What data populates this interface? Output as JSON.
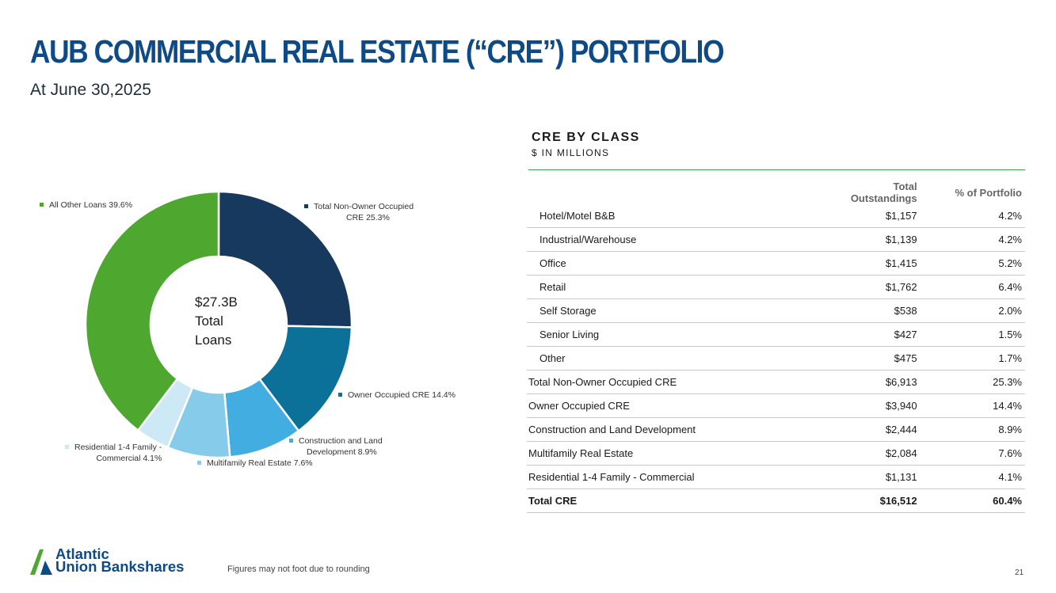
{
  "header": {
    "title": "AUB COMMERCIAL REAL ESTATE (“CRE”) PORTFOLIO",
    "subtitle": "At June 30,2025"
  },
  "table": {
    "title": "CRE BY CLASS",
    "subtitle": "$ IN MILLIONS",
    "columns": [
      "",
      "Total Outstandings",
      "% of Portfolio"
    ],
    "rows": [
      {
        "label": "Hotel/Motel B&B",
        "value": "$1,157",
        "pct": "4.2%"
      },
      {
        "label": "Industrial/Warehouse",
        "value": "$1,139",
        "pct": "4.2%"
      },
      {
        "label": "Office",
        "value": "$1,415",
        "pct": "5.2%"
      },
      {
        "label": "Retail",
        "value": "$1,762",
        "pct": "6.4%"
      },
      {
        "label": "Self Storage",
        "value": "$538",
        "pct": "2.0%"
      },
      {
        "label": "Senior Living",
        "value": "$427",
        "pct": "1.5%"
      },
      {
        "label": "Other",
        "value": "$475",
        "pct": "1.7%"
      },
      {
        "label": "Total Non-Owner Occupied CRE",
        "value": "$6,913",
        "pct": "25.3%"
      },
      {
        "label": "Owner Occupied CRE",
        "value": "$3,940",
        "pct": "14.4%"
      },
      {
        "label": "Construction and Land Development",
        "value": "$2,444",
        "pct": "8.9%"
      },
      {
        "label": "Multifamily Real Estate",
        "value": "$2,084",
        "pct": "7.6%"
      },
      {
        "label": "Residential 1-4 Family - Commercial",
        "value": "$1,131",
        "pct": "4.1%"
      },
      {
        "label": "Total CRE",
        "value": "$16,512",
        "pct": "60.4%"
      }
    ]
  },
  "chart_data": {
    "type": "pie",
    "donut": true,
    "center_label": [
      "$27.3B",
      "Total",
      "Loans"
    ],
    "slices": [
      {
        "label": "Total Non-Owner Occupied CRE",
        "label_lines": [
          "Total Non-Owner Occupied",
          "CRE 25.3%"
        ],
        "value": 25.3,
        "color": "#17395e"
      },
      {
        "label": "Owner Occupied CRE",
        "label_lines": [
          "Owner Occupied CRE 14.4%"
        ],
        "value": 14.4,
        "color": "#0b7199"
      },
      {
        "label": "Construction and Land Development",
        "label_lines": [
          "Construction and Land",
          "Development 8.9%"
        ],
        "value": 8.9,
        "color": "#41ade0"
      },
      {
        "label": "Multifamily Real Estate",
        "label_lines": [
          "Multifamily Real Estate 7.6%"
        ],
        "value": 7.6,
        "color": "#86cbea"
      },
      {
        "label": "Residential 1-4 Family - Commercial",
        "label_lines": [
          "Residential 1-4 Family -",
          "Commercial 4.1%"
        ],
        "value": 4.1,
        "color": "#cde9f6"
      },
      {
        "label": "All Other Loans",
        "label_lines": [
          "All Other Loans 39.6%"
        ],
        "value": 39.6,
        "color": "#4ea72e"
      }
    ]
  },
  "footer": {
    "note": "Figures may not foot due to rounding",
    "page": "21",
    "logo_line1": "Atlantic",
    "logo_line2": "Union Bankshares"
  }
}
